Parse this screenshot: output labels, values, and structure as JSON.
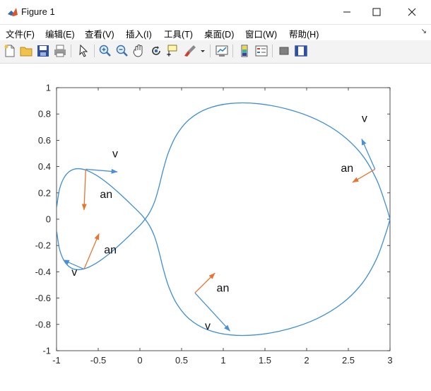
{
  "window": {
    "title": "Figure 1",
    "controls": [
      "minimize",
      "maximize",
      "close"
    ]
  },
  "menu": {
    "items": [
      "文件(F)",
      "编辑(E)",
      "查看(V)",
      "插入(I)",
      "工具(T)",
      "桌面(D)",
      "窗口(W)",
      "帮助(H)"
    ],
    "overflow_arrow": "↘"
  },
  "toolbar": {
    "icons": [
      "new-figure-icon",
      "open-file-icon",
      "save-icon",
      "print-icon",
      "pointer-icon",
      "zoom-in-icon",
      "zoom-out-icon",
      "pan-hand-icon",
      "rotate-3d-icon",
      "data-cursor-icon",
      "brush-icon",
      "dropdown-arrow-icon",
      "link-plot-icon",
      "colorbar-icon",
      "legend-icon",
      "hide-plot-tools-icon",
      "show-plot-tools-icon"
    ]
  },
  "chart_data": {
    "type": "line",
    "x_ticks": [
      "-1",
      "-0.5",
      "0",
      "0.5",
      "1",
      "1.5",
      "2",
      "2.5",
      "3"
    ],
    "y_ticks": [
      "1",
      "0.8",
      "0.6",
      "0.4",
      "0.2",
      "0",
      "-0.2",
      "-0.4",
      "-0.6",
      "-0.8",
      "-1"
    ],
    "xlim": [
      -1,
      3
    ],
    "ylim": [
      -1,
      1
    ],
    "curve_color": "#3d8fd6",
    "v_arrow_color": "#4a90d9",
    "an_arrow_color": "#e8742f",
    "series": [
      {
        "x": [
          -0.997,
          -0.962,
          -0.894,
          -0.796,
          -0.672,
          -0.53,
          -0.379,
          -0.23,
          -0.093,
          0.022,
          0.111,
          0.178,
          0.229,
          0.279,
          0.345,
          0.445,
          0.595,
          0.808,
          1.087,
          1.419,
          1.775,
          2.122,
          2.426,
          2.667,
          2.838,
          2.948,
          3.0
        ],
        "y": [
          0.095,
          0.233,
          0.331,
          0.379,
          0.378,
          0.337,
          0.269,
          0.187,
          0.104,
          0.031,
          -0.045,
          -0.136,
          -0.246,
          -0.374,
          -0.512,
          -0.646,
          -0.76,
          -0.84,
          -0.88,
          -0.878,
          -0.836,
          -0.757,
          -0.64,
          -0.487,
          -0.302,
          -0.11,
          0.0
        ]
      },
      {
        "x": [
          3.0,
          2.948,
          2.838,
          2.667,
          2.426,
          2.122,
          1.775,
          1.419,
          1.087,
          0.808,
          0.595,
          0.445,
          0.345,
          0.279,
          0.229,
          0.178,
          0.111,
          0.022,
          -0.093,
          -0.23,
          -0.379,
          -0.53,
          -0.672,
          -0.796,
          -0.894,
          -0.962,
          -0.997
        ],
        "y": [
          0.0,
          0.11,
          0.302,
          0.487,
          0.64,
          0.757,
          0.836,
          0.878,
          0.88,
          0.84,
          0.76,
          0.646,
          0.512,
          0.374,
          0.246,
          0.136,
          0.045,
          -0.031,
          -0.104,
          -0.187,
          -0.269,
          -0.337,
          -0.378,
          -0.379,
          -0.331,
          -0.233,
          -0.095
        ]
      }
    ],
    "vectors": [
      {
        "kind": "v",
        "from": [
          -0.65,
          0.38
        ],
        "to": [
          -0.27,
          0.36
        ],
        "label": "v",
        "label_at": [
          -0.33,
          0.47
        ]
      },
      {
        "kind": "an",
        "from": [
          -0.65,
          0.38
        ],
        "to": [
          -0.67,
          0.07
        ],
        "label": "an",
        "label_at": [
          -0.48,
          0.16
        ]
      },
      {
        "kind": "v",
        "from": [
          -0.67,
          -0.38
        ],
        "to": [
          -0.92,
          -0.31
        ],
        "label": "v",
        "label_at": [
          -0.82,
          -0.43
        ]
      },
      {
        "kind": "an",
        "from": [
          -0.67,
          -0.38
        ],
        "to": [
          -0.49,
          -0.11
        ],
        "label": "an",
        "label_at": [
          -0.43,
          -0.26
        ]
      },
      {
        "kind": "v",
        "from": [
          0.66,
          -0.56
        ],
        "to": [
          1.08,
          -0.85
        ],
        "label": "v",
        "label_at": [
          0.78,
          -0.84
        ]
      },
      {
        "kind": "an",
        "from": [
          0.66,
          -0.56
        ],
        "to": [
          0.9,
          -0.41
        ],
        "label": "an",
        "label_at": [
          0.92,
          -0.55
        ]
      },
      {
        "kind": "v",
        "from": [
          2.82,
          0.38
        ],
        "to": [
          2.66,
          0.61
        ],
        "label": "v",
        "label_at": [
          2.66,
          0.74
        ]
      },
      {
        "kind": "an",
        "from": [
          2.82,
          0.38
        ],
        "to": [
          2.55,
          0.28
        ],
        "label": "an",
        "label_at": [
          2.41,
          0.36
        ]
      }
    ]
  }
}
